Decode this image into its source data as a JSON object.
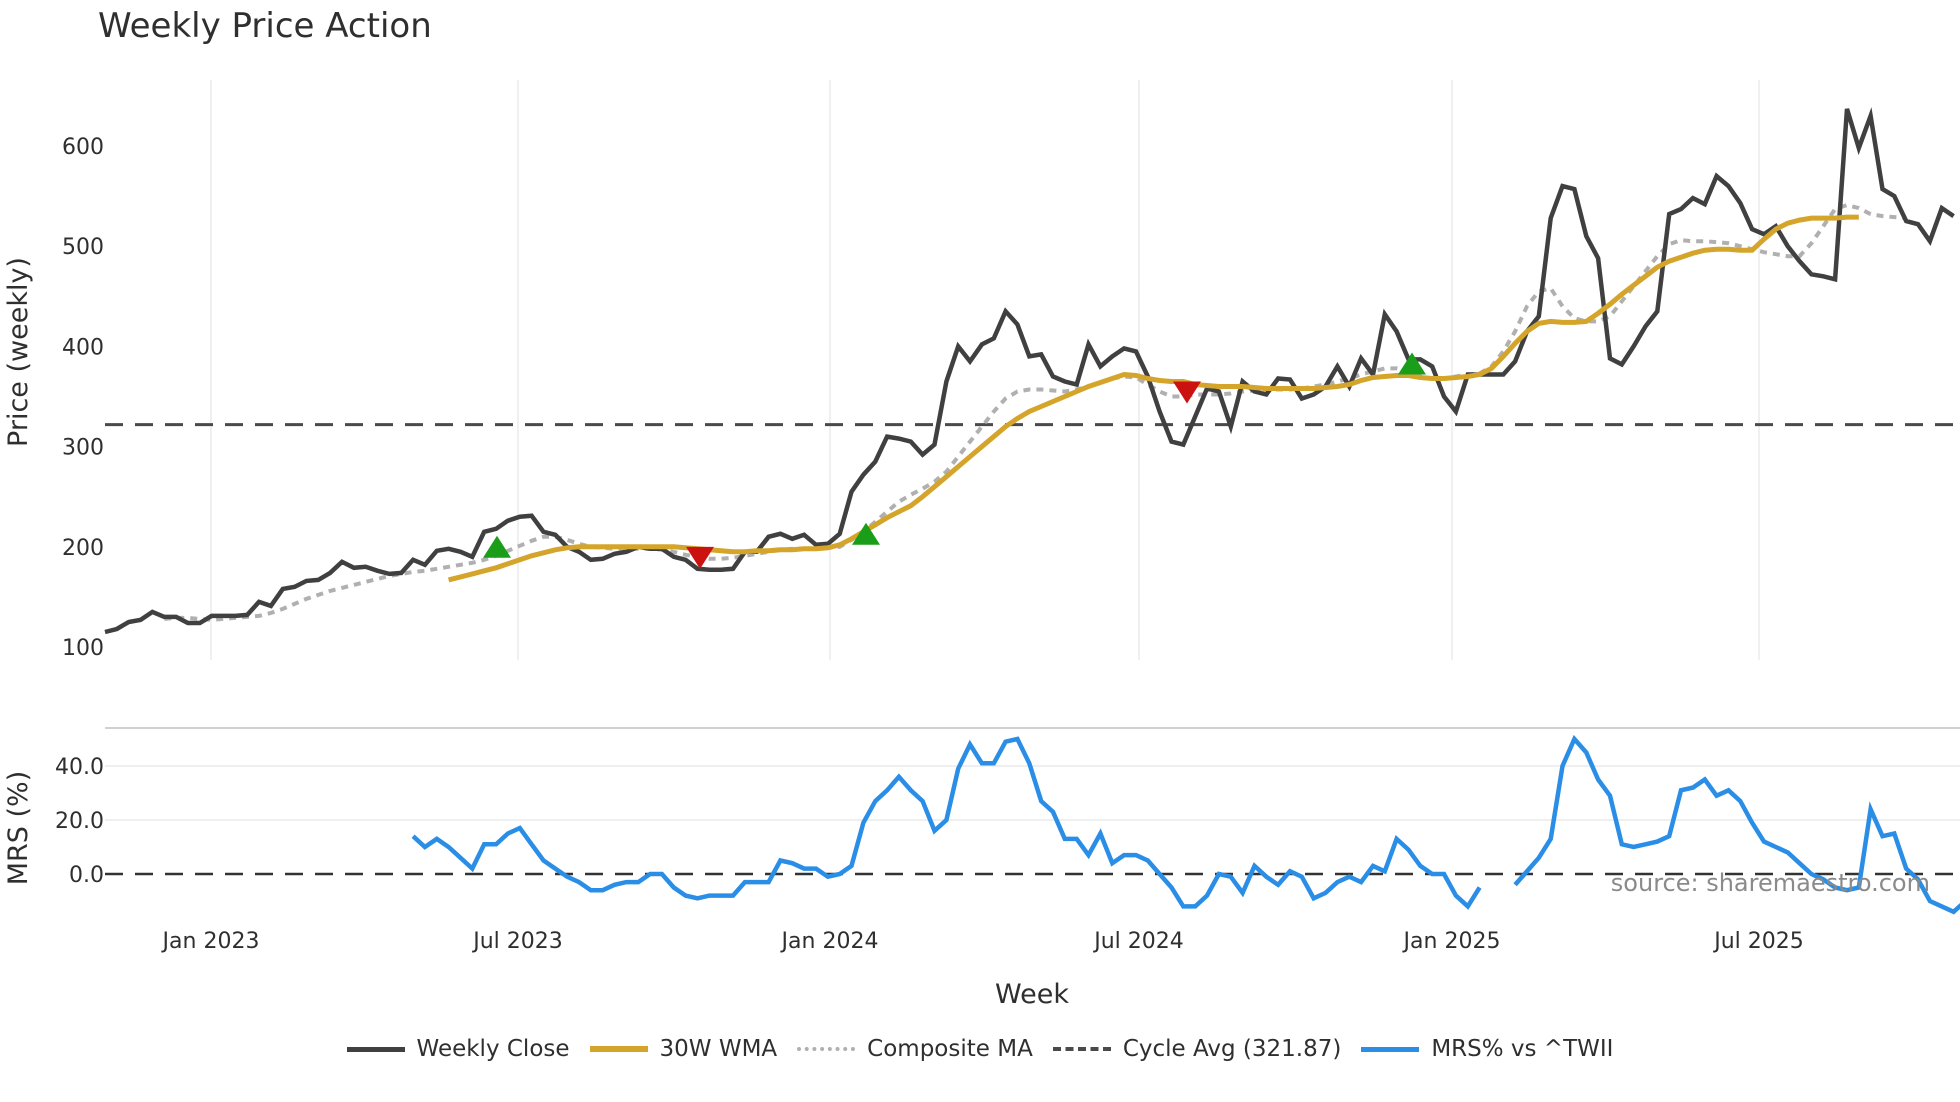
{
  "title": "Weekly Price Action",
  "colors": {
    "weekly_close": "#404040",
    "wma": "#d4a52a",
    "composite": "#b0b0b0",
    "cycle_avg": "#4a4a4a",
    "mrs": "#2b8ee6",
    "buy_marker": "#1a9e1a",
    "sell_marker": "#cc1111",
    "grid": "#ececec"
  },
  "axes": {
    "price_ylabel": "Price (weekly)",
    "mrs_ylabel": "MRS (%)",
    "xlabel": "Week",
    "price_ticks": [
      "600",
      "500",
      "400",
      "300",
      "200",
      "100"
    ],
    "mrs_ticks": [
      "40.0",
      "20.0",
      "0.0"
    ],
    "x_ticks": [
      "Jan 2023",
      "Jul 2023",
      "Jan 2024",
      "Jul 2024",
      "Jan 2025",
      "Jul 2025"
    ]
  },
  "source_note": "source: sharemaestro.com",
  "legend": {
    "weekly_close": "Weekly Close",
    "wma": "30W WMA",
    "composite": "Composite MA",
    "cycle_avg": "Cycle Avg (321.87)",
    "mrs": "MRS% vs ^TWII"
  },
  "chart_data": [
    {
      "type": "line",
      "title": "Weekly Price Action",
      "xlabel": "Week",
      "ylabel": "Price (weekly)",
      "ylim": [
        90,
        660
      ],
      "x_tick_labels": [
        "Jan 2023",
        "Jul 2023",
        "Jan 2024",
        "Jul 2024",
        "Jan 2025",
        "Jul 2025"
      ],
      "x_start": "Oct 2022",
      "x_step": "1 week",
      "series": [
        {
          "name": "Weekly Close",
          "values": [
            115,
            118,
            125,
            127,
            135,
            130,
            130,
            124,
            124,
            131,
            131,
            131,
            132,
            145,
            141,
            158,
            160,
            166,
            167,
            174,
            185,
            179,
            180,
            176,
            173,
            174,
            187,
            182,
            196,
            198,
            195,
            190,
            215,
            218,
            226,
            230,
            231,
            215,
            212,
            200,
            195,
            187,
            188,
            193,
            195,
            200,
            198,
            198,
            190,
            187,
            178,
            177,
            177,
            178,
            195,
            195,
            210,
            213,
            208,
            212,
            202,
            203,
            213,
            255,
            272,
            285,
            310,
            308,
            305,
            292,
            302,
            365,
            400,
            385,
            402,
            408,
            435,
            422,
            390,
            392,
            370,
            365,
            362,
            402,
            380,
            390,
            398,
            395,
            370,
            335,
            305,
            302,
            330,
            358,
            355,
            320,
            365,
            355,
            352,
            368,
            367,
            348,
            352,
            360,
            380,
            360,
            388,
            372,
            432,
            415,
            387,
            387,
            380,
            350,
            335,
            372,
            372,
            372,
            372,
            385,
            415,
            430,
            528,
            560,
            557,
            510,
            488,
            388,
            382,
            400,
            420,
            435,
            532,
            537,
            548,
            542,
            570,
            560,
            543,
            517,
            512,
            520,
            500,
            485,
            472,
            470,
            467,
            637,
            598,
            630,
            557,
            550,
            525,
            522,
            505,
            538,
            530
          ]
        },
        {
          "name": "30W WMA",
          "start_index": 29,
          "values": [
            167,
            170,
            173,
            176,
            179,
            183,
            187,
            191,
            194,
            197,
            199,
            200,
            200,
            200,
            200,
            200,
            200,
            200,
            200,
            200,
            199,
            198,
            197,
            196,
            195,
            195,
            196,
            196,
            197,
            197,
            198,
            198,
            199,
            202,
            208,
            215,
            222,
            229,
            235,
            241,
            250,
            260,
            270,
            280,
            290,
            300,
            310,
            320,
            328,
            335,
            340,
            345,
            350,
            355,
            360,
            364,
            368,
            372,
            371,
            368,
            366,
            365,
            365,
            362,
            361,
            360,
            360,
            360,
            359,
            358,
            358,
            358,
            358,
            358,
            359,
            360,
            362,
            366,
            369,
            370,
            371,
            371,
            369,
            368,
            368,
            369,
            370,
            372,
            378,
            390,
            403,
            415,
            423,
            425,
            424,
            424,
            425,
            433,
            442,
            452,
            461,
            470,
            479,
            485,
            489,
            493,
            496,
            497,
            497,
            496,
            496,
            507,
            517,
            523,
            526,
            528,
            528,
            528,
            529,
            529
          ]
        },
        {
          "name": "Composite MA",
          "start_index": 5,
          "values": [
            128,
            129,
            129,
            128,
            127,
            128,
            129,
            130,
            131,
            134,
            138,
            143,
            148,
            152,
            156,
            159,
            162,
            165,
            168,
            171,
            173,
            175,
            176,
            178,
            180,
            182,
            184,
            187,
            191,
            196,
            201,
            206,
            210,
            210,
            207,
            203,
            200,
            199,
            198,
            198,
            198,
            198,
            197,
            195,
            192,
            190,
            188,
            188,
            189,
            191,
            193,
            195,
            197,
            198,
            198,
            198,
            199,
            200,
            207,
            215,
            225,
            235,
            245,
            252,
            258,
            265,
            275,
            290,
            305,
            320,
            335,
            348,
            355,
            357,
            357,
            356,
            355,
            357,
            360,
            364,
            368,
            370,
            369,
            362,
            355,
            350,
            350,
            352,
            352,
            352,
            353,
            355,
            356,
            357,
            357,
            357,
            358,
            360,
            362,
            365,
            368,
            372,
            375,
            378,
            378,
            375,
            370,
            368,
            368,
            370,
            372,
            373,
            380,
            395,
            415,
            440,
            455,
            458,
            440,
            428,
            425,
            425,
            430,
            445,
            460,
            475,
            490,
            502,
            506,
            505,
            505,
            504,
            503,
            500,
            497,
            494,
            492,
            490,
            490,
            503,
            520,
            537,
            541,
            538,
            532,
            530,
            529,
            528
          ]
        },
        {
          "name": "Cycle Avg (321.87)",
          "values": [
            321.87
          ]
        }
      ],
      "markers": [
        {
          "type": "buy",
          "shape": "triangle-up",
          "color": "#1a9e1a",
          "approx_date": "Jun 2023",
          "price": 197
        },
        {
          "type": "sell",
          "shape": "triangle-down",
          "color": "#cc1111",
          "approx_date": "Oct 2023",
          "price": 190
        },
        {
          "type": "buy",
          "shape": "triangle-up",
          "color": "#1a9e1a",
          "approx_date": "Feb 2024",
          "price": 210
        },
        {
          "type": "sell",
          "shape": "triangle-down",
          "color": "#cc1111",
          "approx_date": "Aug 2024",
          "price": 355
        },
        {
          "type": "buy",
          "shape": "triangle-up",
          "color": "#1a9e1a",
          "approx_date": "Dec 2024",
          "price": 380
        }
      ],
      "legend_position": "bottom",
      "grid": true
    },
    {
      "type": "line",
      "title": "",
      "ylabel": "MRS (%)",
      "ylim": [
        -16,
        55
      ],
      "reference_line": 0,
      "series": [
        {
          "name": "MRS% vs ^TWII",
          "start_index": 26,
          "values": [
            14,
            10,
            13,
            10,
            6,
            2,
            11,
            11,
            15,
            17,
            11,
            5,
            2,
            -1,
            -3,
            -6,
            -6,
            -4,
            -3,
            -3,
            0,
            0,
            -5,
            -8,
            -9,
            -8,
            -8,
            -8,
            -3,
            -3,
            -3,
            5,
            4,
            2,
            2,
            -1,
            0,
            3,
            19,
            27,
            31,
            36,
            31,
            27,
            16,
            20,
            39,
            48,
            41,
            41,
            49,
            50,
            41,
            27,
            23,
            13,
            13,
            7,
            15,
            4,
            7,
            7,
            5,
            0,
            -5,
            -12,
            -12,
            -8,
            0,
            -1,
            -7,
            3,
            -1,
            -4,
            1,
            -1,
            -9,
            -7,
            -3,
            -1,
            -3,
            3,
            1,
            13,
            9,
            3,
            0,
            0,
            -8,
            -12,
            -5,
            null,
            null,
            -4,
            1,
            6,
            13,
            40,
            50,
            45,
            35,
            29,
            11,
            10,
            11,
            12,
            14,
            31,
            32,
            35,
            29,
            31,
            27,
            19,
            12,
            10,
            8,
            4,
            0,
            -2,
            -5,
            -6,
            -5,
            24,
            14,
            15,
            2,
            -2,
            -10,
            -12,
            -14,
            -10,
            -12
          ]
        }
      ]
    }
  ]
}
